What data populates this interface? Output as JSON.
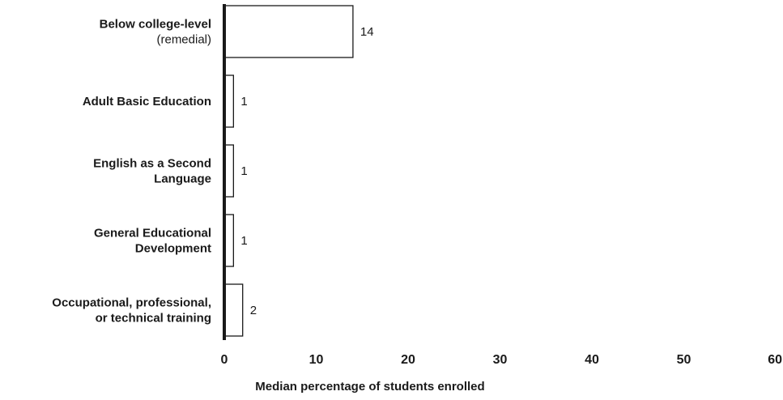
{
  "chart_data": {
    "type": "bar",
    "orientation": "horizontal",
    "categories": [
      {
        "lines": [
          "Below college-level"
        ],
        "sublines": [
          "(remedial)"
        ]
      },
      {
        "lines": [
          "Adult Basic Education"
        ],
        "sublines": []
      },
      {
        "lines": [
          "English as a Second",
          "Language"
        ],
        "sublines": []
      },
      {
        "lines": [
          "General Educational",
          "Development"
        ],
        "sublines": []
      },
      {
        "lines": [
          "Occupational, professional,",
          "or technical training"
        ],
        "sublines": []
      }
    ],
    "values": [
      14,
      1,
      1,
      1,
      2
    ],
    "value_labels": [
      "14",
      "1",
      "1",
      "1",
      "2"
    ],
    "xlabel": "Median percentage of students enrolled",
    "xlim": [
      0,
      60
    ],
    "xticks": [
      0,
      10,
      20,
      30,
      40,
      50,
      60
    ],
    "grid": false,
    "colors": {
      "bar_fill": "#ffffff",
      "bar_stroke": "#1a1a1a",
      "axis": "#1a1a1a"
    }
  }
}
